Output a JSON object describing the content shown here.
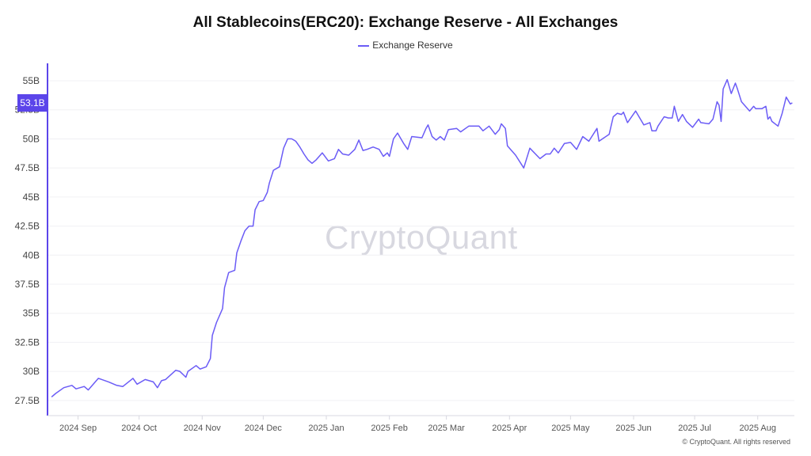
{
  "colors": {
    "line": "#6b5cf6",
    "badge": "#5b45ea",
    "grid": "#f0f0f4",
    "axis": "#d8d8e0"
  },
  "watermark": "CryptoQuant",
  "copyright": "© CryptoQuant. All rights reserved",
  "current_value_badge": "53.1B",
  "chart_data": {
    "type": "line",
    "title": "All Stablecoins(ERC20): Exchange Reserve - All Exchanges",
    "legend": {
      "position": "top-center",
      "entries": [
        "Exchange Reserve"
      ]
    },
    "xlabel": "",
    "ylabel": "",
    "xlim": [
      "2024-08-17",
      "2025-08-19"
    ],
    "ylim": [
      26.4,
      56.5
    ],
    "grid": true,
    "y_ticks": [
      27.5,
      30,
      32.5,
      35,
      37.5,
      40,
      42.5,
      45,
      47.5,
      50,
      52.5,
      55
    ],
    "y_tick_labels": [
      "27.5B",
      "30B",
      "32.5B",
      "35B",
      "37.5B",
      "40B",
      "42.5B",
      "45B",
      "47.5B",
      "50B",
      "52.5B",
      "55B"
    ],
    "x_ticks": [
      "2024-09-01",
      "2024-10-01",
      "2024-11-01",
      "2024-12-01",
      "2025-01-01",
      "2025-02-01",
      "2025-03-01",
      "2025-04-01",
      "2025-05-01",
      "2025-06-01",
      "2025-07-01",
      "2025-08-01"
    ],
    "x_tick_labels": [
      "2024 Sep",
      "2024 Oct",
      "2024 Nov",
      "2024 Dec",
      "2025 Jan",
      "2025 Feb",
      "2025 Mar",
      "2025 Apr",
      "2025 May",
      "2025 Jun",
      "2025 Jul",
      "2025 Aug"
    ],
    "series": [
      {
        "name": "Exchange Reserve",
        "unit": "B",
        "points": [
          [
            "2024-08-19",
            27.8
          ],
          [
            "2024-08-21",
            28.1
          ],
          [
            "2024-08-25",
            28.6
          ],
          [
            "2024-08-29",
            28.8
          ],
          [
            "2024-08-31",
            28.5
          ],
          [
            "2024-09-04",
            28.7
          ],
          [
            "2024-09-06",
            28.4
          ],
          [
            "2024-09-11",
            29.4
          ],
          [
            "2024-09-16",
            29.1
          ],
          [
            "2024-09-20",
            28.8
          ],
          [
            "2024-09-23",
            28.7
          ],
          [
            "2024-09-28",
            29.4
          ],
          [
            "2024-09-30",
            28.9
          ],
          [
            "2024-10-04",
            29.3
          ],
          [
            "2024-10-08",
            29.1
          ],
          [
            "2024-10-10",
            28.6
          ],
          [
            "2024-10-12",
            29.2
          ],
          [
            "2024-10-14",
            29.3
          ],
          [
            "2024-10-19",
            30.1
          ],
          [
            "2024-10-21",
            30.0
          ],
          [
            "2024-10-24",
            29.5
          ],
          [
            "2024-10-25",
            30.0
          ],
          [
            "2024-10-29",
            30.5
          ],
          [
            "2024-10-31",
            30.2
          ],
          [
            "2024-11-03",
            30.4
          ],
          [
            "2024-11-05",
            31.1
          ],
          [
            "2024-11-06",
            33.1
          ],
          [
            "2024-11-08",
            34.2
          ],
          [
            "2024-11-11",
            35.4
          ],
          [
            "2024-11-12",
            37.2
          ],
          [
            "2024-11-14",
            38.5
          ],
          [
            "2024-11-17",
            38.7
          ],
          [
            "2024-11-18",
            40.2
          ],
          [
            "2024-11-20",
            41.2
          ],
          [
            "2024-11-22",
            42.1
          ],
          [
            "2024-11-24",
            42.5
          ],
          [
            "2024-11-26",
            42.5
          ],
          [
            "2024-11-27",
            43.9
          ],
          [
            "2024-11-29",
            44.6
          ],
          [
            "2024-12-01",
            44.7
          ],
          [
            "2024-12-03",
            45.4
          ],
          [
            "2024-12-04",
            46.2
          ],
          [
            "2024-12-06",
            47.3
          ],
          [
            "2024-12-09",
            47.6
          ],
          [
            "2024-12-11",
            49.2
          ],
          [
            "2024-12-13",
            50.0
          ],
          [
            "2024-12-15",
            50.0
          ],
          [
            "2024-12-17",
            49.8
          ],
          [
            "2024-12-19",
            49.3
          ],
          [
            "2024-12-21",
            48.7
          ],
          [
            "2024-12-23",
            48.2
          ],
          [
            "2024-12-25",
            47.9
          ],
          [
            "2024-12-27",
            48.2
          ],
          [
            "2024-12-30",
            48.8
          ],
          [
            "2025-01-02",
            48.1
          ],
          [
            "2025-01-05",
            48.3
          ],
          [
            "2025-01-07",
            49.1
          ],
          [
            "2025-01-09",
            48.7
          ],
          [
            "2025-01-12",
            48.6
          ],
          [
            "2025-01-15",
            49.1
          ],
          [
            "2025-01-17",
            49.9
          ],
          [
            "2025-01-19",
            49.0
          ],
          [
            "2025-01-21",
            49.1
          ],
          [
            "2025-01-24",
            49.3
          ],
          [
            "2025-01-27",
            49.1
          ],
          [
            "2025-01-29",
            48.5
          ],
          [
            "2025-01-31",
            48.8
          ],
          [
            "2025-02-01",
            48.5
          ],
          [
            "2025-02-03",
            50.0
          ],
          [
            "2025-02-05",
            50.5
          ],
          [
            "2025-02-08",
            49.6
          ],
          [
            "2025-02-10",
            49.1
          ],
          [
            "2025-02-12",
            50.2
          ],
          [
            "2025-02-17",
            50.1
          ],
          [
            "2025-02-19",
            50.9
          ],
          [
            "2025-02-20",
            51.2
          ],
          [
            "2025-02-22",
            50.2
          ],
          [
            "2025-02-24",
            49.9
          ],
          [
            "2025-02-26",
            50.2
          ],
          [
            "2025-02-28",
            49.9
          ],
          [
            "2025-03-02",
            50.8
          ],
          [
            "2025-03-06",
            50.9
          ],
          [
            "2025-03-08",
            50.6
          ],
          [
            "2025-03-12",
            51.1
          ],
          [
            "2025-03-17",
            51.1
          ],
          [
            "2025-03-19",
            50.7
          ],
          [
            "2025-03-22",
            51.1
          ],
          [
            "2025-03-25",
            50.4
          ],
          [
            "2025-03-27",
            50.8
          ],
          [
            "2025-03-28",
            51.3
          ],
          [
            "2025-03-30",
            50.9
          ],
          [
            "2025-03-31",
            49.4
          ],
          [
            "2025-04-04",
            48.6
          ],
          [
            "2025-04-08",
            47.5
          ],
          [
            "2025-04-11",
            49.2
          ],
          [
            "2025-04-16",
            48.3
          ],
          [
            "2025-04-19",
            48.7
          ],
          [
            "2025-04-21",
            48.7
          ],
          [
            "2025-04-23",
            49.2
          ],
          [
            "2025-04-25",
            48.8
          ],
          [
            "2025-04-28",
            49.6
          ],
          [
            "2025-05-01",
            49.7
          ],
          [
            "2025-05-04",
            49.1
          ],
          [
            "2025-05-07",
            50.2
          ],
          [
            "2025-05-10",
            49.8
          ],
          [
            "2025-05-14",
            50.9
          ],
          [
            "2025-05-15",
            49.8
          ],
          [
            "2025-05-20",
            50.4
          ],
          [
            "2025-05-22",
            51.9
          ],
          [
            "2025-05-24",
            52.2
          ],
          [
            "2025-05-26",
            52.1
          ],
          [
            "2025-05-27",
            52.3
          ],
          [
            "2025-05-29",
            51.4
          ],
          [
            "2025-06-02",
            52.4
          ],
          [
            "2025-06-06",
            51.2
          ],
          [
            "2025-06-09",
            51.4
          ],
          [
            "2025-06-10",
            50.7
          ],
          [
            "2025-06-12",
            50.7
          ],
          [
            "2025-06-13",
            51.1
          ],
          [
            "2025-06-16",
            51.9
          ],
          [
            "2025-06-18",
            51.8
          ],
          [
            "2025-06-20",
            51.8
          ],
          [
            "2025-06-21",
            52.8
          ],
          [
            "2025-06-23",
            51.5
          ],
          [
            "2025-06-25",
            52.1
          ],
          [
            "2025-06-27",
            51.5
          ],
          [
            "2025-06-30",
            51.0
          ],
          [
            "2025-07-03",
            51.7
          ],
          [
            "2025-07-04",
            51.4
          ],
          [
            "2025-07-08",
            51.3
          ],
          [
            "2025-07-10",
            51.7
          ],
          [
            "2025-07-12",
            53.2
          ],
          [
            "2025-07-13",
            52.9
          ],
          [
            "2025-07-14",
            51.5
          ],
          [
            "2025-07-15",
            54.3
          ],
          [
            "2025-07-17",
            55.1
          ],
          [
            "2025-07-19",
            53.9
          ],
          [
            "2025-07-21",
            54.8
          ],
          [
            "2025-07-22",
            54.3
          ],
          [
            "2025-07-24",
            53.2
          ],
          [
            "2025-07-28",
            52.4
          ],
          [
            "2025-07-30",
            52.8
          ],
          [
            "2025-07-31",
            52.6
          ],
          [
            "2025-08-03",
            52.6
          ],
          [
            "2025-08-05",
            52.8
          ],
          [
            "2025-08-06",
            51.7
          ],
          [
            "2025-08-07",
            51.9
          ],
          [
            "2025-08-08",
            51.5
          ],
          [
            "2025-08-11",
            51.1
          ],
          [
            "2025-08-13",
            52.2
          ],
          [
            "2025-08-15",
            53.6
          ],
          [
            "2025-08-17",
            53.0
          ],
          [
            "2025-08-18",
            53.1
          ]
        ]
      }
    ]
  }
}
